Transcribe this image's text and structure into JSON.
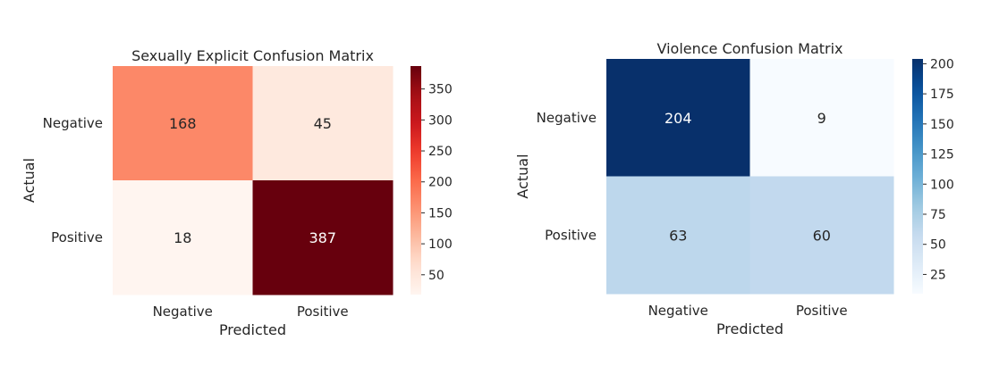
{
  "chart_data": [
    {
      "type": "heatmap",
      "title": "Sexually Explicit Confusion Matrix",
      "xlabel": "Predicted",
      "ylabel": "Actual",
      "x_categories": [
        "Negative",
        "Positive"
      ],
      "y_categories": [
        "Negative",
        "Positive"
      ],
      "values": [
        [
          168,
          45
        ],
        [
          18,
          387
        ]
      ],
      "colormap": "Reds",
      "colorbar_range": [
        18,
        387
      ],
      "colorbar_ticks": [
        50,
        100,
        150,
        200,
        250,
        300,
        350
      ]
    },
    {
      "type": "heatmap",
      "title": "Violence Confusion Matrix",
      "xlabel": "Predicted",
      "ylabel": "Actual",
      "x_categories": [
        "Negative",
        "Positive"
      ],
      "y_categories": [
        "Negative",
        "Positive"
      ],
      "values": [
        [
          204,
          9
        ],
        [
          63,
          60
        ]
      ],
      "colormap": "Blues",
      "colorbar_range": [
        9,
        204
      ],
      "colorbar_ticks": [
        25,
        50,
        75,
        100,
        125,
        150,
        175,
        200
      ]
    }
  ],
  "colormaps": {
    "Reds": [
      "#fff5f0",
      "#fee0d2",
      "#fcbba1",
      "#fc9272",
      "#fb6a4a",
      "#ef3b2c",
      "#cb181d",
      "#a50f15",
      "#67000d"
    ],
    "Blues": [
      "#f7fbff",
      "#deebf7",
      "#c6dbef",
      "#9ecae1",
      "#6baed6",
      "#4292c6",
      "#2171b5",
      "#08519c",
      "#08306b"
    ]
  }
}
